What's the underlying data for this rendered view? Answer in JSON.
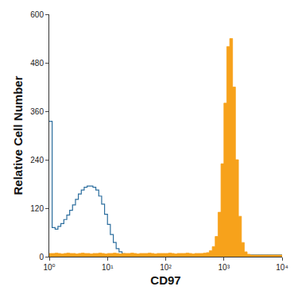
{
  "chart_data": {
    "type": "line",
    "x_label": "CD97",
    "y_label": "Relative Cell Number",
    "log": "x",
    "grid": false,
    "xlim": [
      1,
      10000
    ],
    "xticks": [
      {
        "value": 1,
        "label": "10⁰"
      },
      {
        "value": 10,
        "label": "10¹"
      },
      {
        "value": 100,
        "label": "10²"
      },
      {
        "value": 1000,
        "label": "10³"
      },
      {
        "value": 10000,
        "label": "10⁴"
      }
    ],
    "ylim": [
      0,
      600
    ],
    "yticks": [
      0,
      120,
      240,
      360,
      480,
      600
    ],
    "x": [
      1,
      1.12,
      1.26,
      1.41,
      1.58,
      1.78,
      2,
      2.24,
      2.51,
      2.82,
      3.16,
      3.55,
      3.98,
      4.47,
      5.01,
      5.62,
      6.31,
      7.08,
      7.94,
      8.91,
      10,
      11.2,
      12.6,
      14.1,
      15.8,
      17.8,
      20,
      22.4,
      25.1,
      28.2,
      31.6,
      35.5,
      39.8,
      44.7,
      50.1,
      56.2,
      63.1,
      70.8,
      79.4,
      89.1,
      100,
      112,
      126,
      141,
      158,
      178,
      200,
      224,
      251,
      282,
      316,
      355,
      398,
      447,
      501,
      562,
      631,
      708,
      794,
      891,
      1000,
      1120,
      1260,
      1410,
      1580,
      1780,
      2000,
      2240,
      2510,
      2820,
      3160,
      3550,
      3980,
      4470,
      5010,
      5620,
      6310,
      7080,
      7940,
      8910,
      10000
    ],
    "series": [
      {
        "type": "line",
        "color": "#2c6e9e",
        "line_style": "solid",
        "values": [
          335,
          72,
          68,
          75,
          82,
          92,
          103,
          115,
          128,
          142,
          155,
          165,
          172,
          175,
          175,
          172,
          165,
          150,
          130,
          105,
          80,
          55,
          35,
          20,
          12,
          7,
          5,
          4,
          4,
          4,
          4,
          4,
          4,
          4,
          4,
          4,
          4,
          4,
          4,
          4,
          4,
          4,
          4,
          4,
          4,
          4,
          4,
          4,
          4,
          4,
          4,
          4,
          4,
          4,
          4,
          4,
          4,
          4,
          4,
          4,
          4,
          4,
          4,
          4,
          4,
          4,
          4,
          4,
          4,
          4,
          4,
          4,
          4,
          4,
          4,
          4,
          4,
          4,
          4,
          4,
          4
        ]
      },
      {
        "type": "area",
        "color": "#f7a21b",
        "line_style": "solid",
        "values": [
          8,
          8,
          9,
          8,
          7,
          8,
          9,
          8,
          8,
          7,
          8,
          9,
          8,
          8,
          7,
          8,
          8,
          9,
          8,
          7,
          8,
          8,
          9,
          8,
          7,
          8,
          8,
          8,
          9,
          8,
          7,
          8,
          8,
          8,
          9,
          8,
          7,
          8,
          8,
          8,
          8,
          9,
          8,
          7,
          8,
          8,
          8,
          9,
          8,
          7,
          8,
          8,
          8,
          9,
          10,
          15,
          25,
          50,
          110,
          230,
          380,
          520,
          540,
          420,
          240,
          100,
          35,
          12,
          6,
          4,
          4,
          4,
          4,
          4,
          4,
          4,
          4,
          4,
          4,
          4,
          4
        ]
      }
    ]
  }
}
